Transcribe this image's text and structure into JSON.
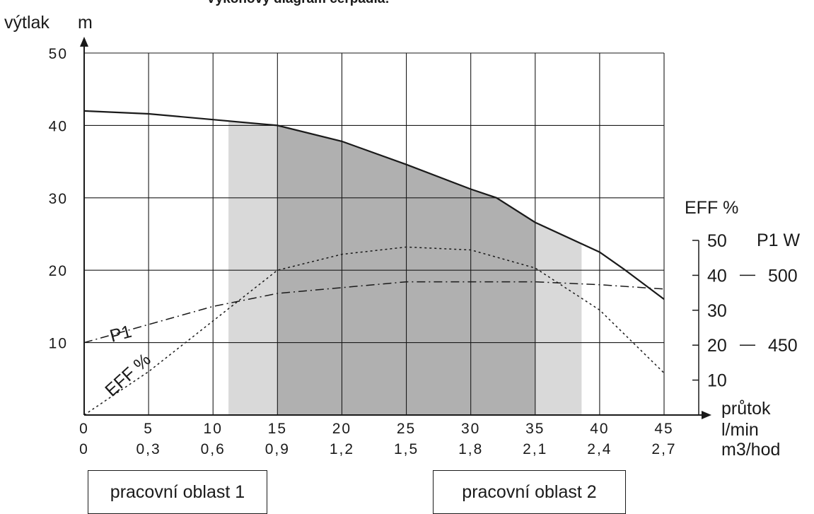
{
  "chart_data": {
    "type": "line",
    "title": "Výkonový diagram čerpadla:",
    "ylabel": "výtlak",
    "yunit": "m",
    "ylim": [
      0,
      50
    ],
    "yticks": [
      "10",
      "20",
      "30",
      "40",
      "50"
    ],
    "xlabel": "průtok",
    "xlim": [
      0,
      45
    ],
    "xticks_lmin": [
      "0",
      "5",
      "10",
      "15",
      "20",
      "25",
      "30",
      "35",
      "40",
      "45"
    ],
    "xticks_m3h": [
      "0",
      "0,3",
      "0,6",
      "0,9",
      "1,2",
      "1,5",
      "1,8",
      "2,1",
      "2,4",
      "2,7"
    ],
    "xunit_1": "l/min",
    "xunit_2": "m3/hod",
    "eff_axis": {
      "label": "EFF %",
      "ticks": [
        "10",
        "20",
        "30",
        "40",
        "50"
      ]
    },
    "p1_axis": {
      "label": "P1 W",
      "ticks": [
        "450",
        "500"
      ]
    },
    "grid": true,
    "series": [
      {
        "name": "výtlak",
        "style": "solid",
        "color": "#1a1a1a",
        "x": [
          0,
          5,
          10,
          15,
          20,
          25,
          30,
          32,
          35,
          40,
          42,
          45
        ],
        "y": [
          42,
          41.6,
          40.8,
          40,
          37.8,
          34.6,
          31.2,
          30,
          26.6,
          22.5,
          20,
          16
        ]
      },
      {
        "name": "EFF %",
        "style": "dotted",
        "color": "#1a1a1a",
        "x": [
          0,
          5,
          10,
          15,
          20,
          25,
          30,
          35,
          40,
          45
        ],
        "y": [
          0,
          6,
          13,
          20,
          22.2,
          23.2,
          22.8,
          20.3,
          14.5,
          5.8
        ]
      },
      {
        "name": "P1",
        "style": "dashdot",
        "color": "#1a1a1a",
        "x": [
          0,
          5,
          10,
          15,
          20,
          25,
          30,
          35,
          40,
          45
        ],
        "y": [
          10,
          12.5,
          15,
          16.8,
          17.6,
          18.4,
          18.4,
          18.4,
          18,
          17.4
        ]
      }
    ],
    "regions": [
      {
        "name": "pracovní oblast 2",
        "color": "#d9d9d9",
        "x": [
          11.2,
          38.6
        ]
      },
      {
        "name": "pracovní oblast 1",
        "color": "#b0b0b0",
        "x": [
          15,
          35
        ]
      }
    ],
    "region_cap": 41,
    "annotations": [
      "P1",
      "EFF %"
    ],
    "legend": [
      "pracovní oblast 1",
      "pracovní oblast 2"
    ]
  }
}
